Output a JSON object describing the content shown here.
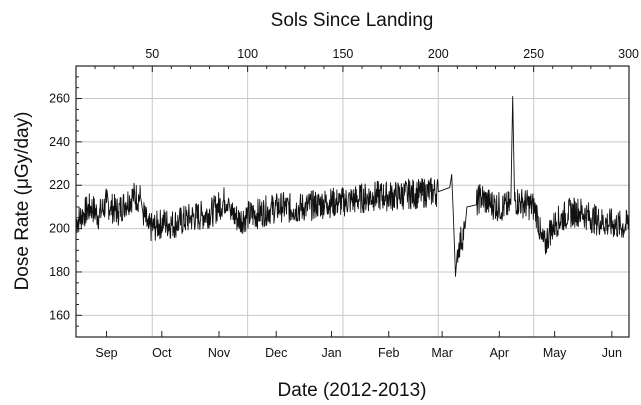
{
  "chart_data": {
    "type": "line",
    "title": "",
    "xlabel": "Date (2012-2013)",
    "x2label": "Sols Since Landing",
    "ylabel": "Dose Rate (μGy/day)",
    "xlim_sol": [
      10,
      300
    ],
    "ylim": [
      150,
      275
    ],
    "grid": true,
    "y_ticks": [
      160,
      180,
      200,
      220,
      240,
      260
    ],
    "top_ticks": [
      50,
      100,
      150,
      200,
      250,
      300
    ],
    "month_ticks": [
      {
        "label": "Sep",
        "sol": 26
      },
      {
        "label": "Oct",
        "sol": 55
      },
      {
        "label": "Nov",
        "sol": 85
      },
      {
        "label": "Dec",
        "sol": 115
      },
      {
        "label": "Jan",
        "sol": 144
      },
      {
        "label": "Feb",
        "sol": 174
      },
      {
        "label": "Mar",
        "sol": 202
      },
      {
        "label": "Apr",
        "sol": 232
      },
      {
        "label": "May",
        "sol": 261
      },
      {
        "label": "Jun",
        "sol": 291
      }
    ],
    "series": [
      {
        "values": [
          [
            10,
            203
          ],
          [
            14,
            207
          ],
          [
            18,
            210
          ],
          [
            22,
            206
          ],
          [
            26,
            212
          ],
          [
            28,
            210
          ],
          [
            32,
            208
          ],
          [
            36,
            212
          ],
          [
            40,
            215
          ],
          [
            44,
            214
          ],
          [
            45,
            208
          ],
          [
            48,
            200
          ],
          [
            52,
            201
          ],
          [
            56,
            203
          ],
          [
            60,
            202
          ],
          [
            64,
            203
          ],
          [
            70,
            205
          ],
          [
            76,
            206
          ],
          [
            82,
            208
          ],
          [
            88,
            213
          ],
          [
            90,
            214
          ],
          [
            91,
            207
          ],
          [
            96,
            204
          ],
          [
            100,
            206
          ],
          [
            106,
            207
          ],
          [
            112,
            209
          ],
          [
            118,
            210
          ],
          [
            124,
            209
          ],
          [
            130,
            210
          ],
          [
            136,
            211
          ],
          [
            142,
            212
          ],
          [
            148,
            212
          ],
          [
            154,
            213
          ],
          [
            160,
            214
          ],
          [
            166,
            215
          ],
          [
            172,
            215
          ],
          [
            178,
            215
          ],
          [
            184,
            216
          ],
          [
            190,
            216
          ],
          [
            196,
            217
          ],
          [
            200,
            217
          ],
          [
            206,
            219
          ],
          [
            207,
            225
          ],
          [
            208,
            203
          ],
          [
            209,
            178
          ],
          [
            210,
            190
          ],
          [
            212,
            195
          ],
          [
            214,
            200
          ],
          [
            215,
            210
          ],
          [
            220,
            211
          ],
          [
            222,
            215
          ],
          [
            226,
            212
          ],
          [
            232,
            210
          ],
          [
            236,
            210
          ],
          [
            238,
            211
          ],
          [
            239,
            261
          ],
          [
            240,
            213
          ],
          [
            244,
            212
          ],
          [
            250,
            210
          ],
          [
            252,
            206
          ],
          [
            254,
            195
          ],
          [
            256,
            192
          ],
          [
            258,
            198
          ],
          [
            262,
            203
          ],
          [
            268,
            207
          ],
          [
            274,
            208
          ],
          [
            280,
            205
          ],
          [
            286,
            203
          ],
          [
            292,
            202
          ],
          [
            298,
            201
          ],
          [
            300,
            203
          ]
        ]
      }
    ]
  }
}
